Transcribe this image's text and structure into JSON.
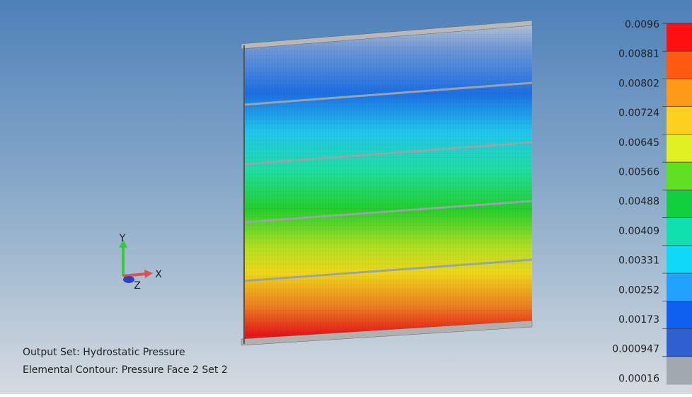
{
  "legend": {
    "labels": [
      "0.0096",
      "0.00881",
      "0.00802",
      "0.00724",
      "0.00645",
      "0.00566",
      "0.00488",
      "0.00409",
      "0.00331",
      "0.00252",
      "0.00173",
      "0.000947",
      "0.00016"
    ]
  },
  "triad": {
    "x": "X",
    "y": "Y",
    "z": "Z"
  },
  "info": {
    "output_set": "Output Set: Hydrostatic Pressure",
    "contour": "Elemental Contour: Pressure Face 2 Set 2"
  }
}
